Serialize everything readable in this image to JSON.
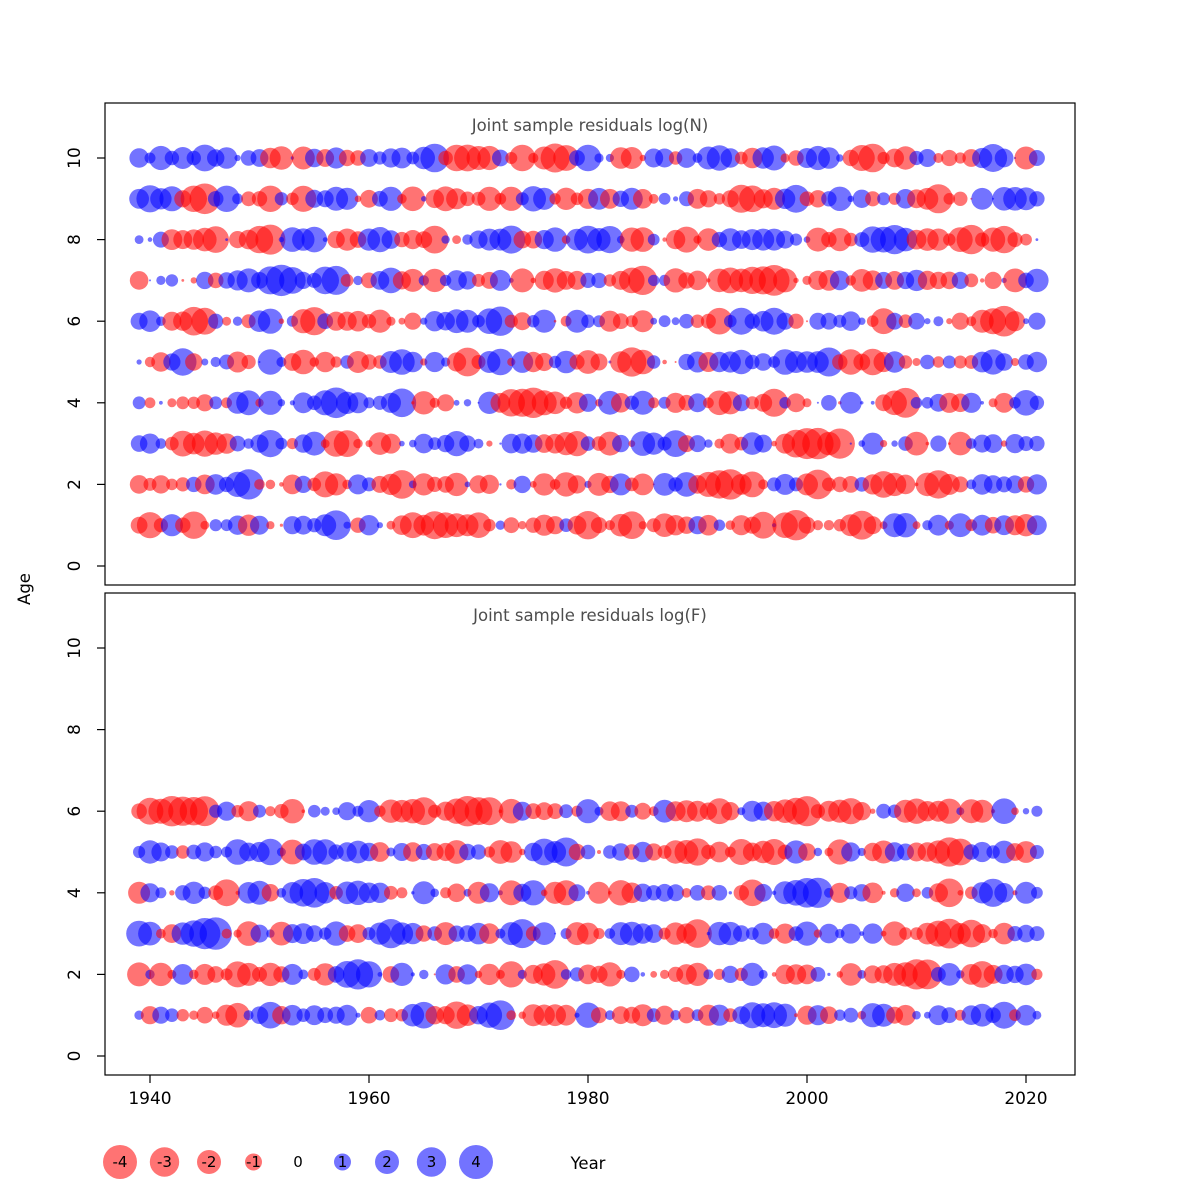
{
  "figure": {
    "xlabel": "Year",
    "ylabel": "Age",
    "x_tick_labels": [
      "1940",
      "1960",
      "1980",
      "2000",
      "2020"
    ],
    "y_tick_labels": [
      "0",
      "2",
      "4",
      "6",
      "8",
      "10"
    ],
    "background": "#ffffff",
    "title_color": "#4d4d4d",
    "axis_color": "#000000"
  },
  "chart_data": {
    "type": "bubble",
    "description": "Joint sample residual bubble plots by year (x) and age (y); circle area proportional to residual magnitude; red circles = negative residuals, blue circles = positive residuals",
    "x_axis": {
      "label": "Year",
      "ticks": [
        1940,
        1960,
        1980,
        2000,
        2020
      ],
      "range": [
        1936,
        2024
      ]
    },
    "y_axis": {
      "label": "Age",
      "ticks": [
        0,
        2,
        4,
        6,
        8,
        10
      ],
      "range": [
        0,
        11
      ]
    },
    "panels": [
      {
        "id": "logN",
        "title": "Joint sample residuals log(N)",
        "ages": [
          1,
          2,
          3,
          4,
          5,
          6,
          7,
          8,
          9,
          10
        ],
        "year_start": 1939,
        "year_end": 2021,
        "seed": 12
      },
      {
        "id": "logF",
        "title": "Joint sample residuals log(F)",
        "ages": [
          1,
          2,
          3,
          4,
          5,
          6
        ],
        "year_start": 1939,
        "year_end": 2021,
        "seed": 97
      }
    ],
    "value_range": [
      -4,
      4
    ],
    "colors": {
      "negative": "rgba(255,0,0,0.55)",
      "positive": "rgba(0,0,255,0.55)"
    },
    "legend": {
      "values": [
        -4,
        -3,
        -2,
        -1,
        0,
        1,
        2,
        3,
        4
      ],
      "labels": [
        "-4",
        "-3",
        "-2",
        "-1",
        "0",
        "1",
        "2",
        "3",
        "4"
      ]
    }
  }
}
